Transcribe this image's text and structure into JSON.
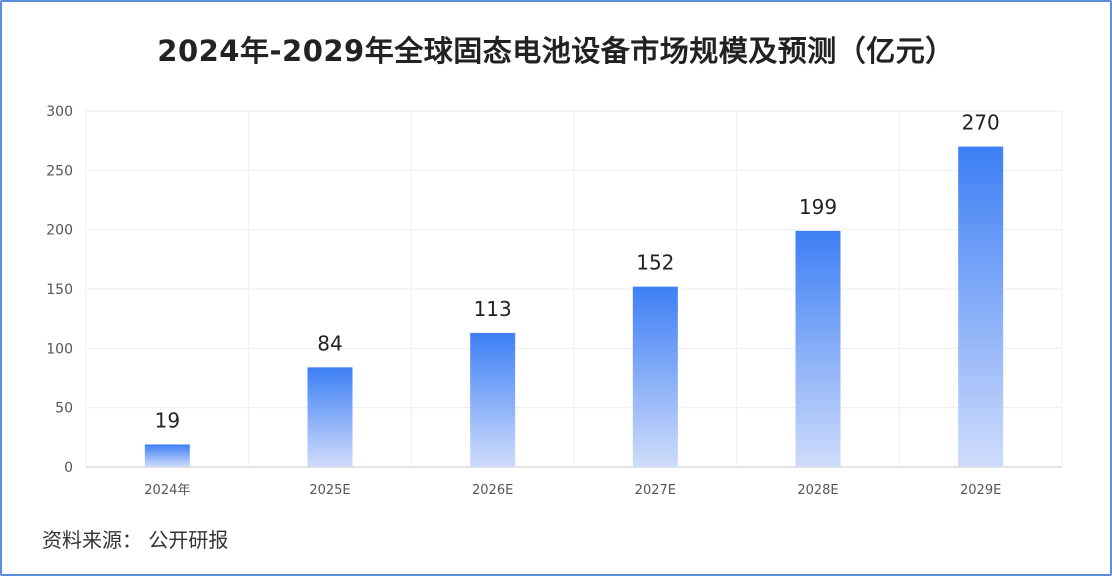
{
  "chart_data": {
    "type": "bar",
    "title": "2024年-2029年全球固态电池设备市场规模及预测（亿元）",
    "categories": [
      "2024年",
      "2025E",
      "2026E",
      "2027E",
      "2028E",
      "2029E"
    ],
    "values": [
      19,
      84,
      113,
      152,
      199,
      270
    ],
    "ylim": [
      0,
      300
    ],
    "yticks": [
      0,
      50,
      100,
      150,
      200,
      250,
      300
    ],
    "grid": true,
    "bar_gradient": [
      "#3d7ff5",
      "#cfdcfb"
    ]
  },
  "source": "资料来源：  公开研报"
}
